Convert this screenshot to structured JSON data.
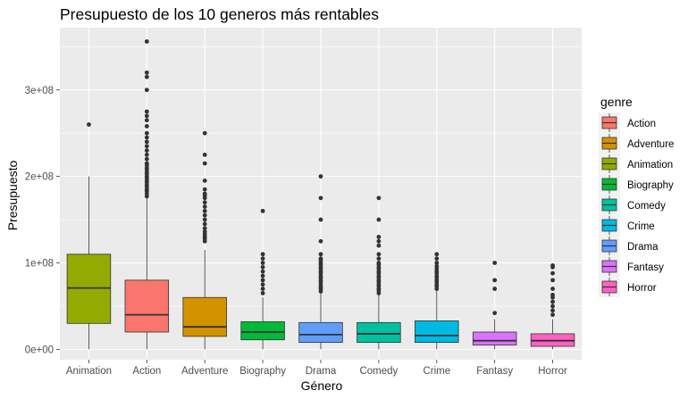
{
  "chart_data": {
    "type": "boxplot",
    "title": "Presupuesto de los 10 generos más rentables",
    "xlabel": "Género",
    "ylabel": "Presupuesto",
    "ylim": [
      -12000000,
      372000000
    ],
    "yticks": [
      0,
      100000000,
      200000000,
      300000000
    ],
    "ytick_labels": [
      "0e+00",
      "1e+08",
      "2e+08",
      "3e+08"
    ],
    "grid": true,
    "legend": {
      "title": "genre",
      "placement": "right",
      "entries": [
        {
          "name": "Action",
          "color": "#F8766D"
        },
        {
          "name": "Adventure",
          "color": "#D39200"
        },
        {
          "name": "Animation",
          "color": "#93AA00"
        },
        {
          "name": "Biography",
          "color": "#00BA38"
        },
        {
          "name": "Comedy",
          "color": "#00C19F"
        },
        {
          "name": "Crime",
          "color": "#00B9E3"
        },
        {
          "name": "Drama",
          "color": "#619CFF"
        },
        {
          "name": "Fantasy",
          "color": "#DB72FB"
        },
        {
          "name": "Horror",
          "color": "#FF61C3"
        }
      ]
    },
    "categories": [
      "Animation",
      "Action",
      "Adventure",
      "Biography",
      "Drama",
      "Comedy",
      "Crime",
      "Fantasy",
      "Horror"
    ],
    "boxes": [
      {
        "category": "Animation",
        "genre": "Animation",
        "min": 0,
        "q1": 30000000,
        "median": 71000000,
        "q3": 110000000,
        "max": 200000000,
        "outliers": [
          260000000
        ]
      },
      {
        "category": "Action",
        "genre": "Action",
        "min": 0,
        "q1": 20000000,
        "median": 40000000,
        "q3": 80000000,
        "max": 175000000,
        "outliers": [
          177000000,
          180000000,
          183000000,
          185000000,
          188000000,
          190000000,
          193000000,
          195000000,
          198000000,
          200000000,
          203000000,
          205000000,
          208000000,
          210000000,
          213000000,
          215000000,
          220000000,
          225000000,
          230000000,
          235000000,
          240000000,
          245000000,
          250000000,
          258000000,
          265000000,
          270000000,
          275000000,
          300000000,
          315000000,
          320000000,
          356000000
        ]
      },
      {
        "category": "Adventure",
        "genre": "Adventure",
        "min": 0,
        "q1": 15000000,
        "median": 26000000,
        "q3": 60000000,
        "max": 115000000,
        "outliers": [
          125000000,
          128000000,
          130000000,
          133000000,
          136000000,
          140000000,
          145000000,
          150000000,
          155000000,
          160000000,
          165000000,
          170000000,
          175000000,
          178000000,
          180000000,
          185000000,
          195000000,
          215000000,
          225000000,
          250000000
        ]
      },
      {
        "category": "Biography",
        "genre": "Biography",
        "min": 0,
        "q1": 11000000,
        "median": 20000000,
        "q3": 32000000,
        "max": 60000000,
        "outliers": [
          65000000,
          70000000,
          75000000,
          80000000,
          85000000,
          90000000,
          95000000,
          100000000,
          105000000,
          110000000,
          160000000
        ]
      },
      {
        "category": "Drama",
        "genre": "Drama",
        "min": 0,
        "q1": 8000000,
        "median": 17000000,
        "q3": 31000000,
        "max": 65000000,
        "outliers": [
          67000000,
          70000000,
          72000000,
          75000000,
          78000000,
          80000000,
          83000000,
          85000000,
          88000000,
          90000000,
          93000000,
          95000000,
          98000000,
          100000000,
          103000000,
          105000000,
          110000000,
          125000000,
          150000000,
          175000000,
          200000000
        ]
      },
      {
        "category": "Comedy",
        "genre": "Comedy",
        "min": 0,
        "q1": 8000000,
        "median": 18000000,
        "q3": 31000000,
        "max": 63000000,
        "outliers": [
          65000000,
          68000000,
          70000000,
          73000000,
          75000000,
          78000000,
          80000000,
          83000000,
          85000000,
          88000000,
          90000000,
          93000000,
          95000000,
          98000000,
          100000000,
          105000000,
          110000000,
          120000000,
          125000000,
          130000000,
          150000000,
          175000000
        ]
      },
      {
        "category": "Crime",
        "genre": "Crime",
        "min": 0,
        "q1": 8000000,
        "median": 16000000,
        "q3": 33000000,
        "max": 68000000,
        "outliers": [
          70000000,
          73000000,
          75000000,
          78000000,
          80000000,
          83000000,
          85000000,
          88000000,
          90000000,
          93000000,
          96000000,
          100000000,
          105000000,
          110000000
        ]
      },
      {
        "category": "Fantasy",
        "genre": "Fantasy",
        "min": 0,
        "q1": 5000000,
        "median": 10000000,
        "q3": 20000000,
        "max": 35000000,
        "outliers": [
          42000000,
          70000000,
          80000000,
          100000000
        ]
      },
      {
        "category": "Horror",
        "genre": "Horror",
        "min": 0,
        "q1": 3500000,
        "median": 10000000,
        "q3": 18000000,
        "max": 35000000,
        "outliers": [
          40000000,
          45000000,
          50000000,
          55000000,
          60000000,
          63000000,
          70000000,
          80000000,
          88000000,
          95000000,
          97000000
        ]
      }
    ]
  }
}
